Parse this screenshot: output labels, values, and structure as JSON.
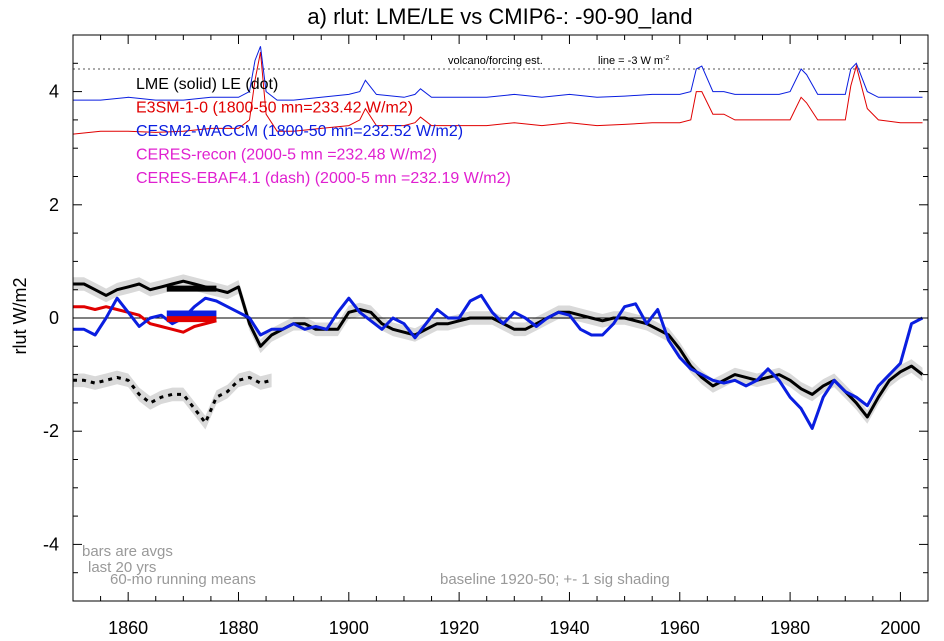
{
  "chart_data": {
    "type": "line",
    "title": "a) rlut: LME/LE vs CMIP6-: -90-90_land",
    "ylabel": "rlut W/m2",
    "xlabel": "",
    "xlim": [
      1850,
      2005
    ],
    "ylim": [
      -5,
      5
    ],
    "xticks": [
      1860,
      1880,
      1900,
      1920,
      1940,
      1960,
      1980,
      2000
    ],
    "yticks": [
      -4,
      -2,
      0,
      2,
      4
    ],
    "ytick_labels": [
      "-4",
      "-2",
      "0",
      "2",
      "4"
    ],
    "xtick_labels": [
      "1860",
      "1880",
      "1900",
      "1920",
      "1940",
      "1960",
      "1980",
      "2000"
    ],
    "grid": false,
    "colors": {
      "black": "#000000",
      "red": "#e00000",
      "blue": "#0a1ee0",
      "magenta": "#e020d0",
      "gray": "#999999",
      "shade": "#d9d9d9"
    },
    "legend": [
      {
        "text": "LME (solid)   LE (dot)",
        "color": "#000000"
      },
      {
        "text": "E3SM-1-0 (1800-50 mn=233.42 W/m2)",
        "color": "#e00000"
      },
      {
        "text": "CESM2-WACCM (1800-50 mn=232.52 W/m2)",
        "color": "#0a1ee0"
      },
      {
        "text": "CERES-recon (2000-5 mn =232.48 W/m2)",
        "color": "#e020d0"
      },
      {
        "text": "CERES-EBAF4.1 (dash) (2000-5 mn =232.19 W/m2)",
        "color": "#e020d0"
      }
    ],
    "annotations": {
      "volcano": "volcano/forcing est.",
      "line_note": "line = -3 W m",
      "line_note_sup": "-2",
      "bars_1": "bars are avgs",
      "bars_2": "last 20 yrs",
      "running": "60-mo running means",
      "baseline": "baseline 1920-50; +- 1 sig shading"
    },
    "volcano_ref_y": 4.4,
    "series": [
      {
        "name": "LME (solid)",
        "color": "#000000",
        "style": "solid",
        "x": [
          1850,
          1852,
          1854,
          1856,
          1858,
          1860,
          1862,
          1864,
          1866,
          1868,
          1870,
          1872,
          1874,
          1876,
          1878,
          1880,
          1882,
          1884,
          1886,
          1888,
          1890,
          1892,
          1894,
          1896,
          1898,
          1900,
          1902,
          1904,
          1906,
          1908,
          1910,
          1912,
          1914,
          1916,
          1918,
          1920,
          1922,
          1924,
          1926,
          1928,
          1930,
          1932,
          1934,
          1936,
          1938,
          1940,
          1942,
          1944,
          1946,
          1948,
          1950,
          1952,
          1954,
          1956,
          1958,
          1960,
          1962,
          1964,
          1966,
          1968,
          1970,
          1972,
          1974,
          1976,
          1978,
          1980,
          1982,
          1984,
          1986,
          1988,
          1990,
          1992,
          1994,
          1996,
          1998,
          2000,
          2002,
          2004
        ],
        "y": [
          0.6,
          0.6,
          0.5,
          0.4,
          0.5,
          0.55,
          0.6,
          0.5,
          0.55,
          0.6,
          0.65,
          0.6,
          0.55,
          0.5,
          0.45,
          0.55,
          -0.1,
          -0.5,
          -0.3,
          -0.2,
          -0.1,
          -0.1,
          -0.2,
          -0.2,
          -0.2,
          0.1,
          0.15,
          0.1,
          -0.1,
          -0.2,
          -0.25,
          -0.3,
          -0.2,
          -0.1,
          -0.1,
          -0.05,
          0.0,
          0.0,
          0.0,
          -0.1,
          -0.2,
          -0.2,
          -0.1,
          0.0,
          0.1,
          0.1,
          0.05,
          0.0,
          -0.05,
          0.0,
          0.0,
          -0.05,
          -0.1,
          -0.2,
          -0.3,
          -0.55,
          -0.85,
          -1.05,
          -1.2,
          -1.1,
          -1.0,
          -1.05,
          -1.1,
          -1.05,
          -1.0,
          -1.1,
          -1.25,
          -1.35,
          -1.2,
          -1.1,
          -1.3,
          -1.5,
          -1.75,
          -1.4,
          -1.1,
          -0.95,
          -0.85,
          -1.0
        ]
      },
      {
        "name": "E3SM-1-0",
        "color": "#e00000",
        "style": "solid",
        "x": [
          1850,
          1852,
          1854,
          1856,
          1858,
          1860,
          1862,
          1864,
          1866,
          1868,
          1870,
          1872,
          1874,
          1876
        ],
        "y": [
          0.2,
          0.2,
          0.15,
          0.2,
          0.15,
          0.1,
          0.05,
          -0.1,
          -0.15,
          -0.2,
          -0.25,
          -0.15,
          -0.1,
          -0.05
        ]
      },
      {
        "name": "CESM2-WACCM",
        "color": "#0a1ee0",
        "style": "solid",
        "x": [
          1850,
          1852,
          1854,
          1856,
          1858,
          1860,
          1862,
          1864,
          1866,
          1868,
          1870,
          1872,
          1874,
          1876,
          1878,
          1880,
          1882,
          1884,
          1886,
          1888,
          1890,
          1892,
          1894,
          1896,
          1898,
          1900,
          1902,
          1904,
          1906,
          1908,
          1910,
          1912,
          1914,
          1916,
          1918,
          1920,
          1922,
          1924,
          1926,
          1928,
          1930,
          1932,
          1934,
          1936,
          1938,
          1940,
          1942,
          1944,
          1946,
          1948,
          1950,
          1952,
          1954,
          1956,
          1958,
          1960,
          1962,
          1964,
          1966,
          1968,
          1970,
          1972,
          1974,
          1976,
          1978,
          1980,
          1982,
          1984,
          1986,
          1988,
          1990,
          1992,
          1994,
          1996,
          1998,
          2000,
          2002,
          2004
        ],
        "y": [
          -0.2,
          -0.2,
          -0.3,
          0.0,
          0.35,
          0.1,
          -0.15,
          0.0,
          0.05,
          -0.1,
          0.0,
          0.2,
          0.35,
          0.3,
          0.2,
          0.1,
          0.0,
          -0.3,
          -0.2,
          -0.2,
          -0.1,
          -0.2,
          -0.15,
          -0.2,
          0.1,
          0.35,
          0.1,
          -0.05,
          -0.2,
          0.0,
          -0.1,
          -0.35,
          -0.1,
          0.15,
          0.0,
          0.0,
          0.3,
          0.4,
          0.1,
          -0.1,
          0.1,
          0.0,
          -0.15,
          0.0,
          0.1,
          0.05,
          -0.2,
          -0.3,
          -0.3,
          -0.1,
          0.2,
          0.25,
          -0.1,
          0.15,
          -0.4,
          -0.7,
          -0.9,
          -1.0,
          -1.1,
          -1.15,
          -1.1,
          -1.2,
          -1.1,
          -0.9,
          -1.1,
          -1.4,
          -1.6,
          -1.95,
          -1.4,
          -1.1,
          -1.3,
          -1.4,
          -1.55,
          -1.2,
          -1.0,
          -0.8,
          -0.1,
          0.0
        ]
      },
      {
        "name": "LE (dot)",
        "color": "#000000",
        "style": "dot",
        "x": [
          1850,
          1852,
          1854,
          1856,
          1858,
          1860,
          1862,
          1864,
          1866,
          1868,
          1870,
          1872,
          1874,
          1876,
          1878,
          1880,
          1882,
          1884,
          1886
        ],
        "y": [
          -1.1,
          -1.1,
          -1.15,
          -1.1,
          -1.05,
          -1.1,
          -1.35,
          -1.5,
          -1.4,
          -1.35,
          -1.35,
          -1.6,
          -1.85,
          -1.4,
          -1.3,
          -1.1,
          -1.05,
          -1.15,
          -1.1
        ]
      }
    ],
    "e3sm_forcing": {
      "x": [
        1850,
        1855,
        1860,
        1865,
        1870,
        1875,
        1880,
        1882,
        1883,
        1884,
        1885,
        1887,
        1890,
        1895,
        1900,
        1902,
        1903,
        1905,
        1910,
        1912,
        1913,
        1915,
        1920,
        1925,
        1930,
        1935,
        1940,
        1945,
        1950,
        1955,
        1960,
        1962,
        1963,
        1964,
        1966,
        1968,
        1970,
        1975,
        1978,
        1980,
        1982,
        1983,
        1985,
        1990,
        1991,
        1992,
        1994,
        1996,
        2000,
        2004
      ],
      "y": [
        3.25,
        3.3,
        3.3,
        3.28,
        3.3,
        3.35,
        3.35,
        3.5,
        4.2,
        4.7,
        3.6,
        3.3,
        3.3,
        3.35,
        3.4,
        3.5,
        3.7,
        3.4,
        3.4,
        3.45,
        3.55,
        3.4,
        3.4,
        3.4,
        3.45,
        3.4,
        3.45,
        3.4,
        3.42,
        3.45,
        3.45,
        3.5,
        4.0,
        4.0,
        3.6,
        3.6,
        3.5,
        3.5,
        3.5,
        3.5,
        3.9,
        3.8,
        3.5,
        3.5,
        4.1,
        4.45,
        3.7,
        3.5,
        3.45,
        3.45
      ]
    },
    "cesm_forcing": {
      "x": [
        1850,
        1855,
        1860,
        1865,
        1870,
        1875,
        1880,
        1882,
        1883,
        1884,
        1885,
        1887,
        1890,
        1895,
        1900,
        1902,
        1903,
        1905,
        1910,
        1912,
        1913,
        1915,
        1920,
        1925,
        1930,
        1935,
        1940,
        1945,
        1950,
        1955,
        1960,
        1962,
        1963,
        1964,
        1966,
        1968,
        1970,
        1975,
        1978,
        1980,
        1982,
        1983,
        1985,
        1990,
        1991,
        1992,
        1994,
        1996,
        2000,
        2004
      ],
      "y": [
        3.85,
        3.85,
        3.9,
        3.85,
        3.85,
        3.9,
        3.9,
        4.0,
        4.55,
        4.8,
        4.0,
        3.85,
        3.85,
        3.9,
        3.95,
        4.0,
        4.2,
        3.95,
        3.9,
        3.95,
        4.05,
        3.9,
        3.9,
        3.9,
        3.95,
        3.9,
        3.95,
        3.9,
        3.92,
        3.95,
        3.95,
        4.0,
        4.4,
        4.45,
        4.0,
        4.0,
        3.95,
        3.95,
        3.95,
        4.0,
        4.4,
        4.3,
        3.95,
        3.95,
        4.4,
        4.5,
        4.0,
        3.9,
        3.9,
        3.9
      ]
    },
    "avg_bars": [
      {
        "color": "#000000",
        "x0": 1867,
        "x1": 1876,
        "y": 0.52
      },
      {
        "color": "#0a1ee0",
        "x0": 1867,
        "x1": 1876,
        "y": 0.08
      },
      {
        "color": "#e00000",
        "x0": 1867,
        "x1": 1876,
        "y": -0.02
      }
    ],
    "shading": [
      {
        "series": "LME (solid)",
        "sigma": 0.12
      },
      {
        "series": "LE (dot)",
        "sigma": 0.12
      }
    ]
  }
}
